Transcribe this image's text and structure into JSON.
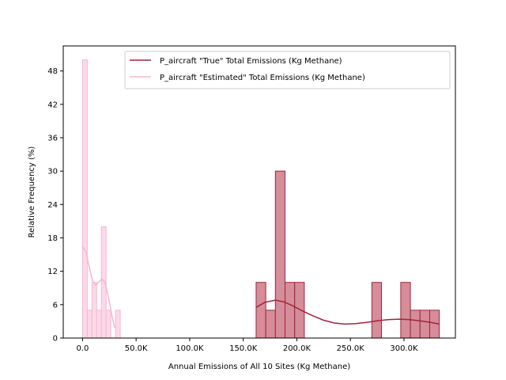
{
  "chart_data": {
    "type": "histogram",
    "xlabel": "Annual Emissions of All 10 Sites (Kg Methane)",
    "ylabel": "Relative Frequency (%)",
    "xlim": [
      -18000,
      348000
    ],
    "ylim": [
      0,
      52.5
    ],
    "x_ticks": [
      0,
      50000,
      100000,
      150000,
      200000,
      250000,
      300000
    ],
    "x_tick_labels": [
      "0.0",
      "50.0K",
      "100.0K",
      "150.0K",
      "200.0K",
      "250.0K",
      "300.0K"
    ],
    "y_ticks": [
      0,
      6,
      12,
      18,
      24,
      30,
      36,
      42,
      48
    ],
    "y_tick_labels": [
      "0",
      "6",
      "12",
      "18",
      "24",
      "30",
      "36",
      "42",
      "48"
    ],
    "grid": false,
    "legend_position": "upper-right",
    "series": [
      {
        "name": "P_aircraft \"True\" Total Emissions (Kg Methane)",
        "color": "#a4233c",
        "fill": "#d48d99",
        "bins": [
          {
            "x0": 162000,
            "x1": 171000,
            "value": 10
          },
          {
            "x0": 171000,
            "x1": 180000,
            "value": 5
          },
          {
            "x0": 180000,
            "x1": 189000,
            "value": 30
          },
          {
            "x0": 189000,
            "x1": 198000,
            "value": 10
          },
          {
            "x0": 198000,
            "x1": 207000,
            "value": 10
          },
          {
            "x0": 207000,
            "x1": 216000,
            "value": 0
          },
          {
            "x0": 216000,
            "x1": 225000,
            "value": 0
          },
          {
            "x0": 225000,
            "x1": 234000,
            "value": 0
          },
          {
            "x0": 234000,
            "x1": 243000,
            "value": 0
          },
          {
            "x0": 243000,
            "x1": 252000,
            "value": 0
          },
          {
            "x0": 252000,
            "x1": 261000,
            "value": 0
          },
          {
            "x0": 261000,
            "x1": 270000,
            "value": 0
          },
          {
            "x0": 270000,
            "x1": 279000,
            "value": 10
          },
          {
            "x0": 279000,
            "x1": 288000,
            "value": 0
          },
          {
            "x0": 288000,
            "x1": 297000,
            "value": 0
          },
          {
            "x0": 297000,
            "x1": 306000,
            "value": 10
          },
          {
            "x0": 306000,
            "x1": 315000,
            "value": 5
          },
          {
            "x0": 315000,
            "x1": 324000,
            "value": 5
          },
          {
            "x0": 324000,
            "x1": 333000,
            "value": 5
          }
        ],
        "kde": {
          "x": [
            162000,
            170000,
            180000,
            188000,
            196000,
            205000,
            215000,
            225000,
            235000,
            245000,
            255000,
            265000,
            275000,
            285000,
            295000,
            305000,
            315000,
            325000,
            333000
          ],
          "y": [
            5.5,
            6.4,
            6.8,
            6.5,
            5.8,
            4.9,
            4.0,
            3.2,
            2.7,
            2.5,
            2.6,
            2.8,
            3.1,
            3.3,
            3.4,
            3.3,
            3.1,
            2.8,
            2.5
          ]
        }
      },
      {
        "name": "P_aircraft \"Estimated\" Total Emissions (Kg Methane)",
        "color": "#f7b6d2",
        "fill": "#fcd9e8",
        "bins": [
          {
            "x0": 0,
            "x1": 4400,
            "value": 50
          },
          {
            "x0": 4400,
            "x1": 8800,
            "value": 5
          },
          {
            "x0": 8800,
            "x1": 13200,
            "value": 10
          },
          {
            "x0": 13200,
            "x1": 17600,
            "value": 5
          },
          {
            "x0": 17600,
            "x1": 22000,
            "value": 20
          },
          {
            "x0": 22000,
            "x1": 26400,
            "value": 5
          },
          {
            "x0": 26400,
            "x1": 30800,
            "value": 0
          },
          {
            "x0": 30800,
            "x1": 35200,
            "value": 5
          }
        ],
        "kde": {
          "x": [
            0,
            3000,
            6000,
            9000,
            12000,
            15000,
            18000,
            21000,
            24000,
            27000,
            30000
          ],
          "y": [
            16.5,
            15.5,
            13.0,
            10.5,
            9.5,
            10.0,
            10.6,
            10.0,
            7.5,
            4.5,
            1.8
          ]
        }
      }
    ]
  }
}
